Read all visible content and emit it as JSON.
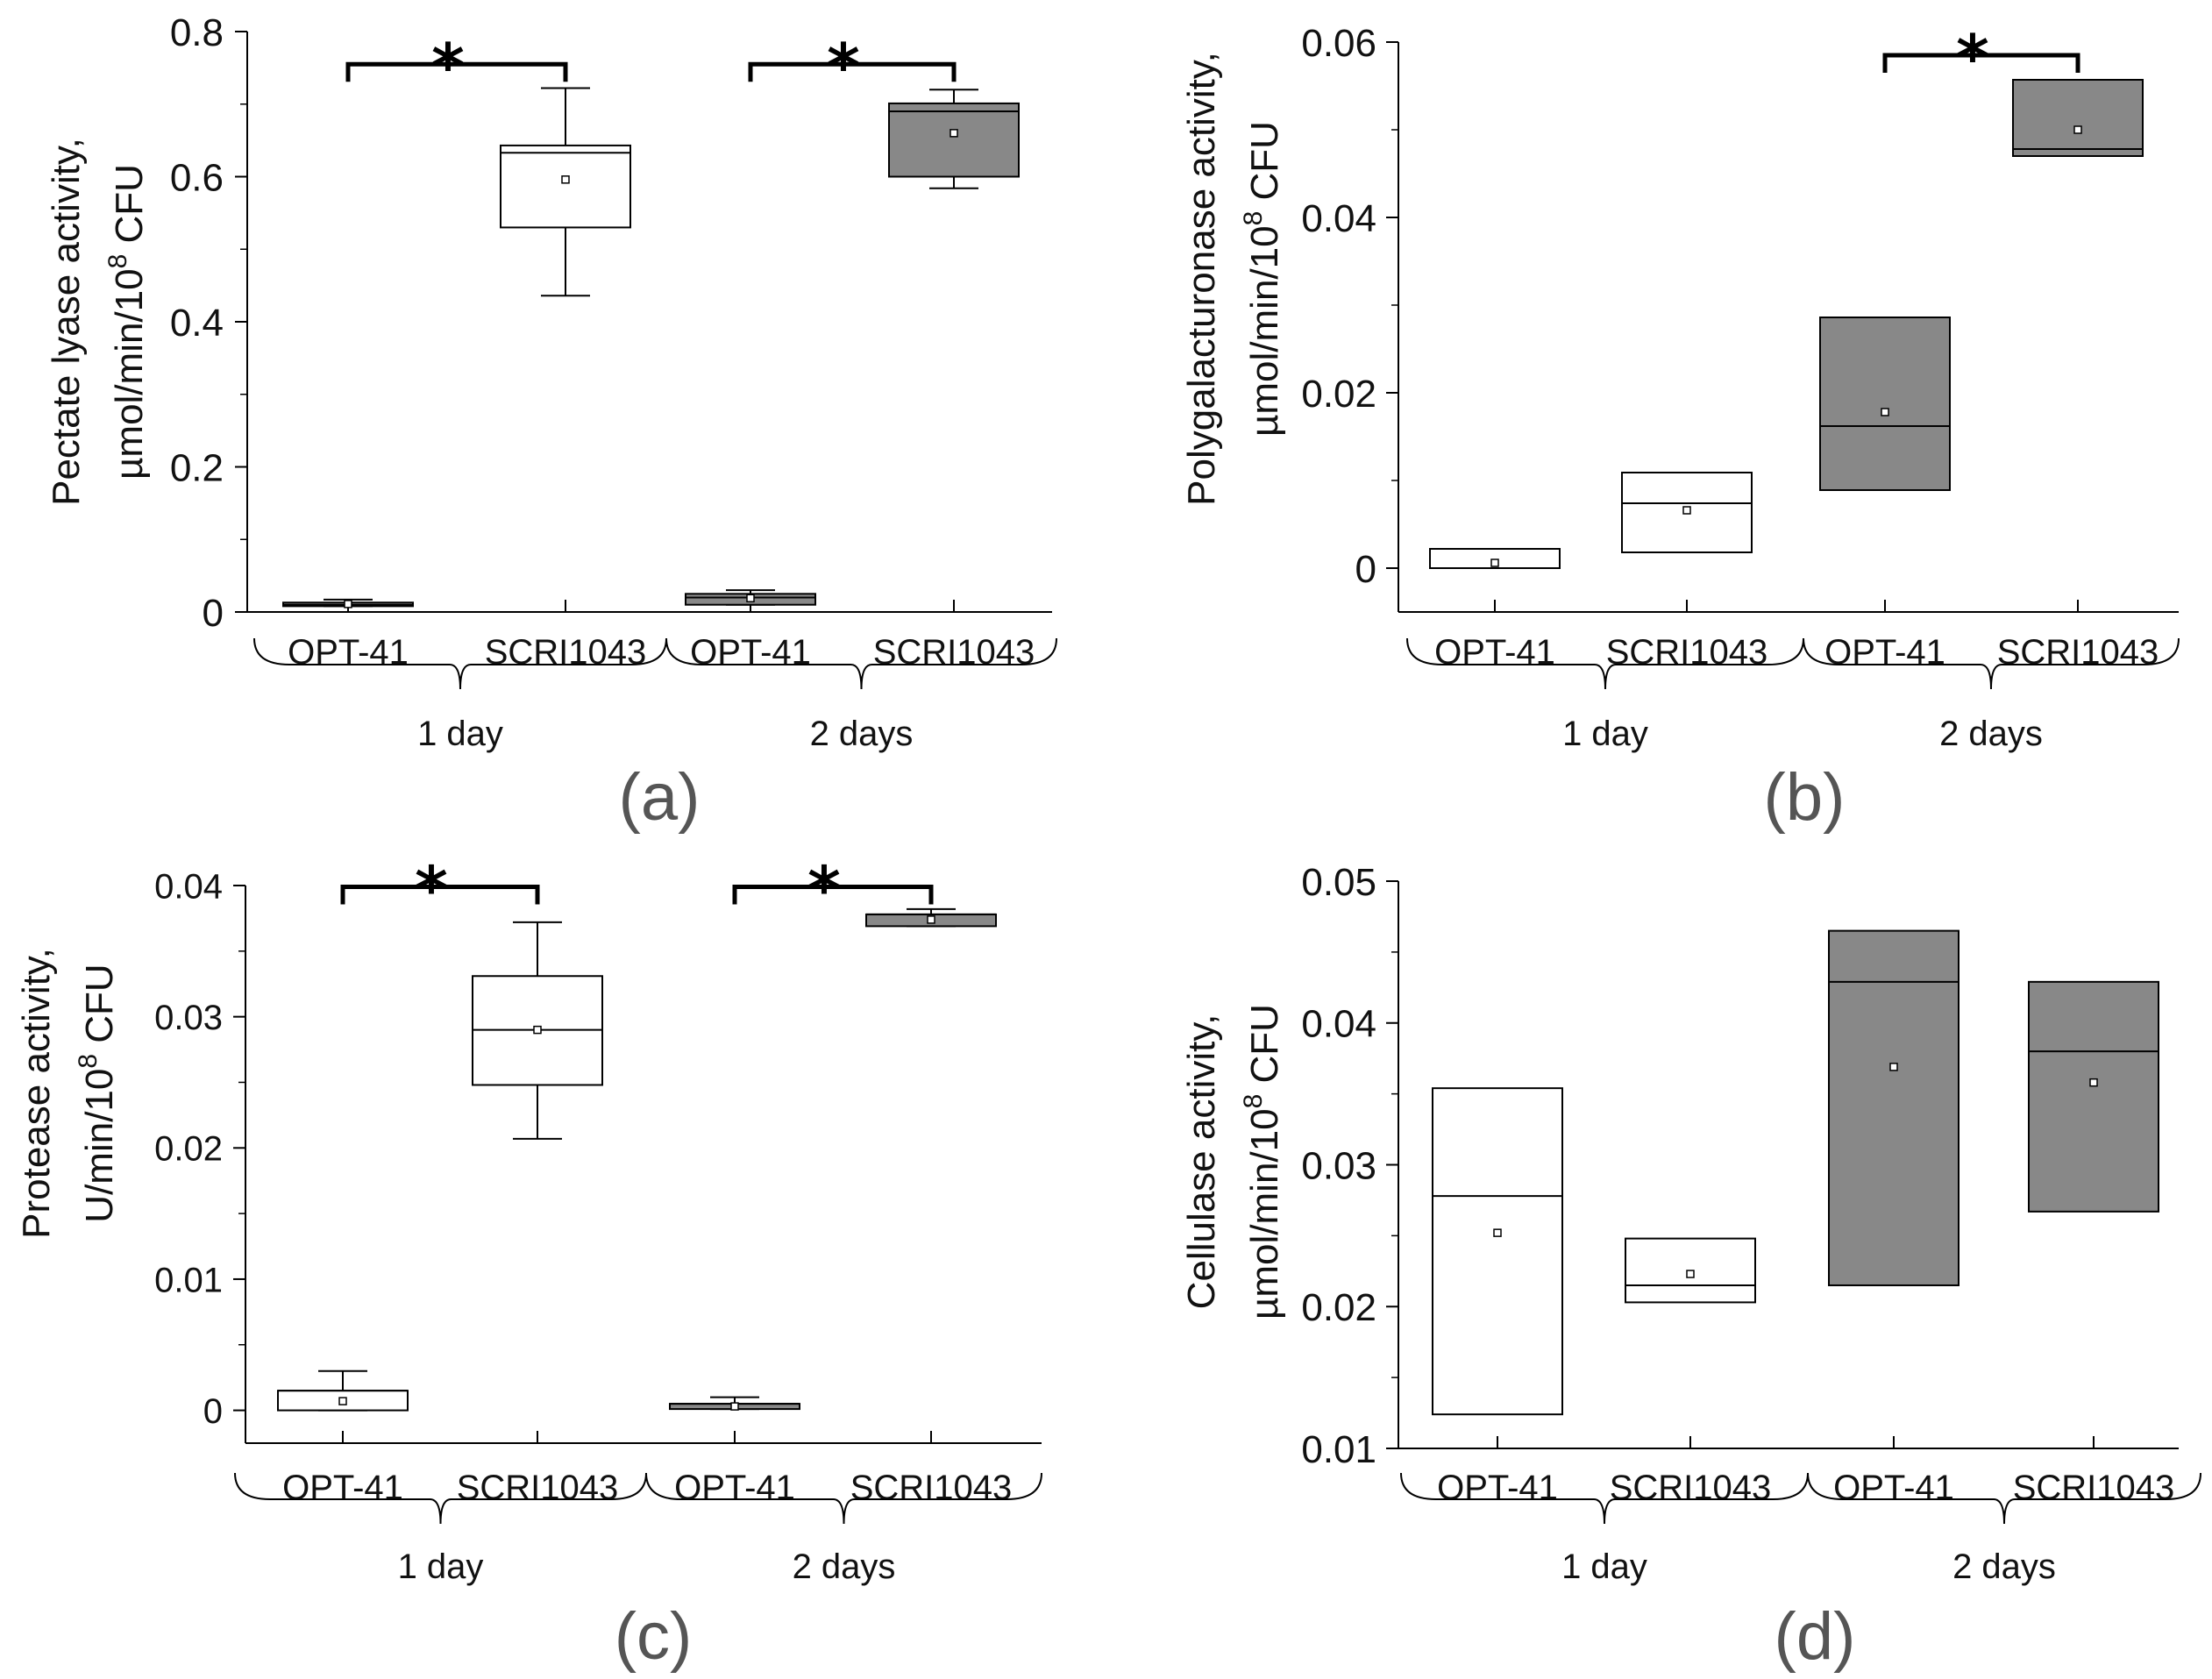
{
  "chart_data": [
    {
      "type": "box",
      "panel_label": "(a)",
      "ylabel_lines": [
        "Pectate lyase activity,",
        "µmol/min/10",
        "8",
        " CFU"
      ],
      "ylim": [
        0,
        0.8
      ],
      "yticks": [
        0,
        0.2,
        0.4,
        0.6,
        0.8
      ],
      "ytick_labels": [
        "0",
        "0.2",
        "0.4",
        "0.6",
        "0.8"
      ],
      "groups": [
        "1 day",
        "2 days"
      ],
      "categories": [
        "OPT-41",
        "SCRI1043",
        "OPT-41",
        "SCRI1043"
      ],
      "fill_colors": [
        "#888888",
        "#ffffff",
        "#888888",
        "#888888"
      ],
      "boxes": [
        {
          "label": "OPT-41",
          "group": "1 day",
          "q1": 0.008,
          "median": 0.01,
          "q3": 0.013,
          "mean": 0.011,
          "whisker_low": 0.008,
          "whisker_high": 0.017
        },
        {
          "label": "SCRI1043",
          "group": "1 day",
          "q1": 0.53,
          "median": 0.633,
          "q3": 0.643,
          "mean": 0.596,
          "whisker_low": 0.436,
          "whisker_high": 0.722
        },
        {
          "label": "OPT-41",
          "group": "2 days",
          "q1": 0.01,
          "median": 0.02,
          "q3": 0.025,
          "mean": 0.019,
          "whisker_low": 0.01,
          "whisker_high": 0.03
        },
        {
          "label": "SCRI1043",
          "group": "2 days",
          "q1": 0.6,
          "median": 0.69,
          "q3": 0.701,
          "mean": 0.66,
          "whisker_low": 0.584,
          "whisker_high": 0.72
        }
      ],
      "significance": [
        {
          "from": 0,
          "to": 1,
          "level": 0.755,
          "symbol": "*"
        },
        {
          "from": 2,
          "to": 3,
          "level": 0.755,
          "symbol": "*"
        }
      ]
    },
    {
      "type": "box",
      "panel_label": "(b)",
      "ylabel_lines": [
        "Polygalacturonase activity,",
        "µmol/min/10",
        "8",
        " CFU"
      ],
      "ylim": [
        -0.005,
        0.06
      ],
      "yticks": [
        0,
        0.02,
        0.04,
        0.06
      ],
      "ytick_labels": [
        "0",
        "0.02",
        "0.04",
        "0.06"
      ],
      "groups": [
        "1 day",
        "2 days"
      ],
      "categories": [
        "OPT-41",
        "SCRI1043",
        "OPT-41",
        "SCRI1043"
      ],
      "fill_colors": [
        "#ffffff",
        "#ffffff",
        "#888888",
        "#888888"
      ],
      "boxes": [
        {
          "label": "OPT-41",
          "group": "1 day",
          "q1": 0.0,
          "median": 0.0022,
          "q3": 0.0022,
          "mean": 0.0006
        },
        {
          "label": "SCRI1043",
          "group": "1 day",
          "q1": 0.0018,
          "median": 0.0074,
          "q3": 0.0109,
          "mean": 0.0066
        },
        {
          "label": "OPT-41",
          "group": "2 days",
          "q1": 0.0089,
          "median": 0.0162,
          "q3": 0.0286,
          "mean": 0.0178
        },
        {
          "label": "SCRI1043",
          "group": "2 days",
          "q1": 0.047,
          "median": 0.0478,
          "q3": 0.0557,
          "mean": 0.05
        }
      ],
      "significance": [
        {
          "from": 2,
          "to": 3,
          "level": 0.0585,
          "symbol": "*"
        }
      ]
    },
    {
      "type": "box",
      "panel_label": "(c)",
      "ylabel_lines": [
        "Protease activity,",
        "U/min/10",
        "8",
        " CFU"
      ],
      "ylim": [
        -0.0025,
        0.04
      ],
      "yticks": [
        0,
        0.01,
        0.02,
        0.03,
        0.04
      ],
      "ytick_labels": [
        "0",
        "0.01",
        "0.02",
        "0.03",
        "0.04"
      ],
      "groups": [
        "1 day",
        "2 days"
      ],
      "categories": [
        "OPT-41",
        "SCRI1043",
        "OPT-41",
        "SCRI1043"
      ],
      "fill_colors": [
        "#ffffff",
        "#ffffff",
        "#888888",
        "#888888"
      ],
      "boxes": [
        {
          "label": "OPT-41",
          "group": "1 day",
          "q1": 0.0,
          "median": 0.0015,
          "q3": 0.0015,
          "mean": 0.0007,
          "whisker_low": 0.0,
          "whisker_high": 0.003
        },
        {
          "label": "SCRI1043",
          "group": "1 day",
          "q1": 0.0248,
          "median": 0.029,
          "q3": 0.0331,
          "mean": 0.029,
          "whisker_low": 0.0207,
          "whisker_high": 0.0372
        },
        {
          "label": "OPT-41",
          "group": "2 days",
          "q1": 0.0001,
          "median": 0.0005,
          "q3": 0.0005,
          "mean": 0.0003,
          "whisker_low": 0.0001,
          "whisker_high": 0.001
        },
        {
          "label": "SCRI1043",
          "group": "2 days",
          "q1": 0.0369,
          "median": 0.0378,
          "q3": 0.0378,
          "mean": 0.0374,
          "whisker_low": 0.0369,
          "whisker_high": 0.0382
        }
      ],
      "significance": [
        {
          "from": 0,
          "to": 1,
          "level": 0.0399,
          "symbol": "*"
        },
        {
          "from": 2,
          "to": 3,
          "level": 0.0399,
          "symbol": "*"
        }
      ]
    },
    {
      "type": "box",
      "panel_label": "(d)",
      "ylabel_lines": [
        "Cellulase activity,",
        "µmol/min/10",
        "8",
        " CFU"
      ],
      "ylim": [
        0.01,
        0.05
      ],
      "yticks": [
        0.01,
        0.02,
        0.03,
        0.04,
        0.05
      ],
      "ytick_labels": [
        "0.01",
        "0.02",
        "0.03",
        "0.04",
        "0.05"
      ],
      "groups": [
        "1 day",
        "2 days"
      ],
      "categories": [
        "OPT-41",
        "SCRI1043",
        "OPT-41",
        "SCRI1043"
      ],
      "fill_colors": [
        "#ffffff",
        "#ffffff",
        "#888888",
        "#888888"
      ],
      "boxes": [
        {
          "label": "OPT-41",
          "group": "1 day",
          "q1": 0.0124,
          "median": 0.0278,
          "q3": 0.0354,
          "mean": 0.0252
        },
        {
          "label": "SCRI1043",
          "group": "1 day",
          "q1": 0.0203,
          "median": 0.0215,
          "q3": 0.0248,
          "mean": 0.0223
        },
        {
          "label": "OPT-41",
          "group": "2 days",
          "q1": 0.0215,
          "median": 0.0429,
          "q3": 0.0465,
          "mean": 0.0369
        },
        {
          "label": "SCRI1043",
          "group": "2 days",
          "q1": 0.0267,
          "median": 0.038,
          "q3": 0.0429,
          "mean": 0.0358
        }
      ],
      "significance": []
    }
  ]
}
